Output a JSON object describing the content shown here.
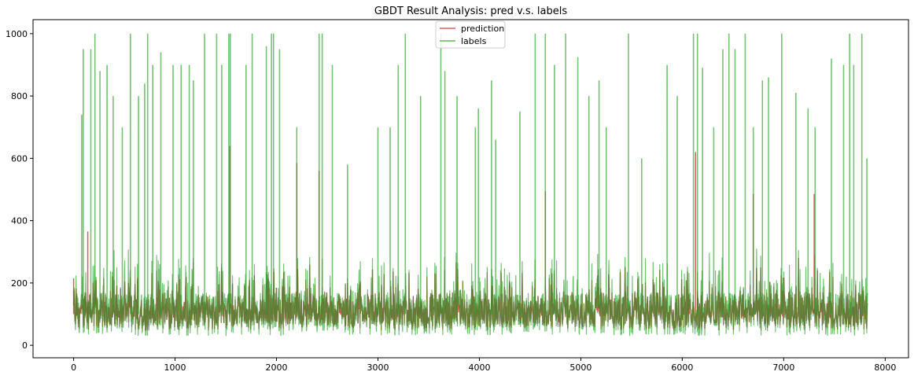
{
  "chart_data": {
    "type": "line",
    "title": "GBDT Result Analysis: pred v.s. labels",
    "xlabel": "",
    "ylabel": "",
    "xlim": [
      -400,
      8230
    ],
    "ylim": [
      -40,
      1045
    ],
    "x_ticks": [
      0,
      1000,
      2000,
      3000,
      4000,
      5000,
      6000,
      7000,
      8000
    ],
    "y_ticks": [
      0,
      200,
      400,
      600,
      800,
      1000
    ],
    "grid": false,
    "legend": "upper center",
    "n_points": 7830,
    "series": [
      {
        "name": "prediction",
        "color": "#d62728",
        "typical_range": [
          50,
          300
        ],
        "notable_points": [
          {
            "x": 0,
            "y": 215
          },
          {
            "x": 140,
            "y": 365
          },
          {
            "x": 1540,
            "y": 640
          },
          {
            "x": 2200,
            "y": 585
          },
          {
            "x": 2420,
            "y": 560
          },
          {
            "x": 4650,
            "y": 495
          },
          {
            "x": 6130,
            "y": 620
          },
          {
            "x": 6700,
            "y": 485
          },
          {
            "x": 7300,
            "y": 485
          }
        ]
      },
      {
        "name": "labels",
        "color": "#2ca02c",
        "typical_range": [
          25,
          330
        ],
        "notable_points": [
          {
            "x": 80,
            "y": 740
          },
          {
            "x": 95,
            "y": 950
          },
          {
            "x": 170,
            "y": 950
          },
          {
            "x": 210,
            "y": 1000
          },
          {
            "x": 260,
            "y": 880
          },
          {
            "x": 330,
            "y": 900
          },
          {
            "x": 390,
            "y": 800
          },
          {
            "x": 480,
            "y": 700
          },
          {
            "x": 560,
            "y": 1000
          },
          {
            "x": 640,
            "y": 800
          },
          {
            "x": 700,
            "y": 840
          },
          {
            "x": 730,
            "y": 1000
          },
          {
            "x": 780,
            "y": 900
          },
          {
            "x": 860,
            "y": 940
          },
          {
            "x": 980,
            "y": 900
          },
          {
            "x": 1060,
            "y": 900
          },
          {
            "x": 1140,
            "y": 900
          },
          {
            "x": 1180,
            "y": 850
          },
          {
            "x": 1290,
            "y": 1000
          },
          {
            "x": 1410,
            "y": 1000
          },
          {
            "x": 1460,
            "y": 900
          },
          {
            "x": 1530,
            "y": 1000
          },
          {
            "x": 1545,
            "y": 1000
          },
          {
            "x": 1700,
            "y": 900
          },
          {
            "x": 1760,
            "y": 1000
          },
          {
            "x": 1900,
            "y": 960
          },
          {
            "x": 1950,
            "y": 1000
          },
          {
            "x": 1970,
            "y": 1000
          },
          {
            "x": 2030,
            "y": 950
          },
          {
            "x": 2200,
            "y": 700
          },
          {
            "x": 2420,
            "y": 1000
          },
          {
            "x": 2450,
            "y": 1000
          },
          {
            "x": 2550,
            "y": 900
          },
          {
            "x": 2700,
            "y": 580
          },
          {
            "x": 3000,
            "y": 700
          },
          {
            "x": 3120,
            "y": 700
          },
          {
            "x": 3200,
            "y": 900
          },
          {
            "x": 3270,
            "y": 1000
          },
          {
            "x": 3420,
            "y": 800
          },
          {
            "x": 3620,
            "y": 1000
          },
          {
            "x": 3660,
            "y": 880
          },
          {
            "x": 3780,
            "y": 800
          },
          {
            "x": 3960,
            "y": 700
          },
          {
            "x": 3990,
            "y": 760
          },
          {
            "x": 4120,
            "y": 850
          },
          {
            "x": 4160,
            "y": 660
          },
          {
            "x": 4400,
            "y": 750
          },
          {
            "x": 4550,
            "y": 1000
          },
          {
            "x": 4650,
            "y": 1000
          },
          {
            "x": 4740,
            "y": 900
          },
          {
            "x": 4850,
            "y": 1000
          },
          {
            "x": 4970,
            "y": 925
          },
          {
            "x": 5080,
            "y": 800
          },
          {
            "x": 5180,
            "y": 850
          },
          {
            "x": 5250,
            "y": 700
          },
          {
            "x": 5470,
            "y": 1000
          },
          {
            "x": 5600,
            "y": 600
          },
          {
            "x": 5850,
            "y": 900
          },
          {
            "x": 5950,
            "y": 800
          },
          {
            "x": 6110,
            "y": 1000
          },
          {
            "x": 6150,
            "y": 1000
          },
          {
            "x": 6200,
            "y": 890
          },
          {
            "x": 6310,
            "y": 700
          },
          {
            "x": 6400,
            "y": 950
          },
          {
            "x": 6460,
            "y": 1000
          },
          {
            "x": 6520,
            "y": 950
          },
          {
            "x": 6620,
            "y": 1000
          },
          {
            "x": 6700,
            "y": 700
          },
          {
            "x": 6790,
            "y": 850
          },
          {
            "x": 6850,
            "y": 860
          },
          {
            "x": 6980,
            "y": 1000
          },
          {
            "x": 7120,
            "y": 810
          },
          {
            "x": 7240,
            "y": 760
          },
          {
            "x": 7310,
            "y": 700
          },
          {
            "x": 7470,
            "y": 920
          },
          {
            "x": 7590,
            "y": 900
          },
          {
            "x": 7650,
            "y": 1000
          },
          {
            "x": 7690,
            "y": 900
          },
          {
            "x": 7770,
            "y": 1000
          },
          {
            "x": 7820,
            "y": 600
          }
        ]
      }
    ]
  }
}
